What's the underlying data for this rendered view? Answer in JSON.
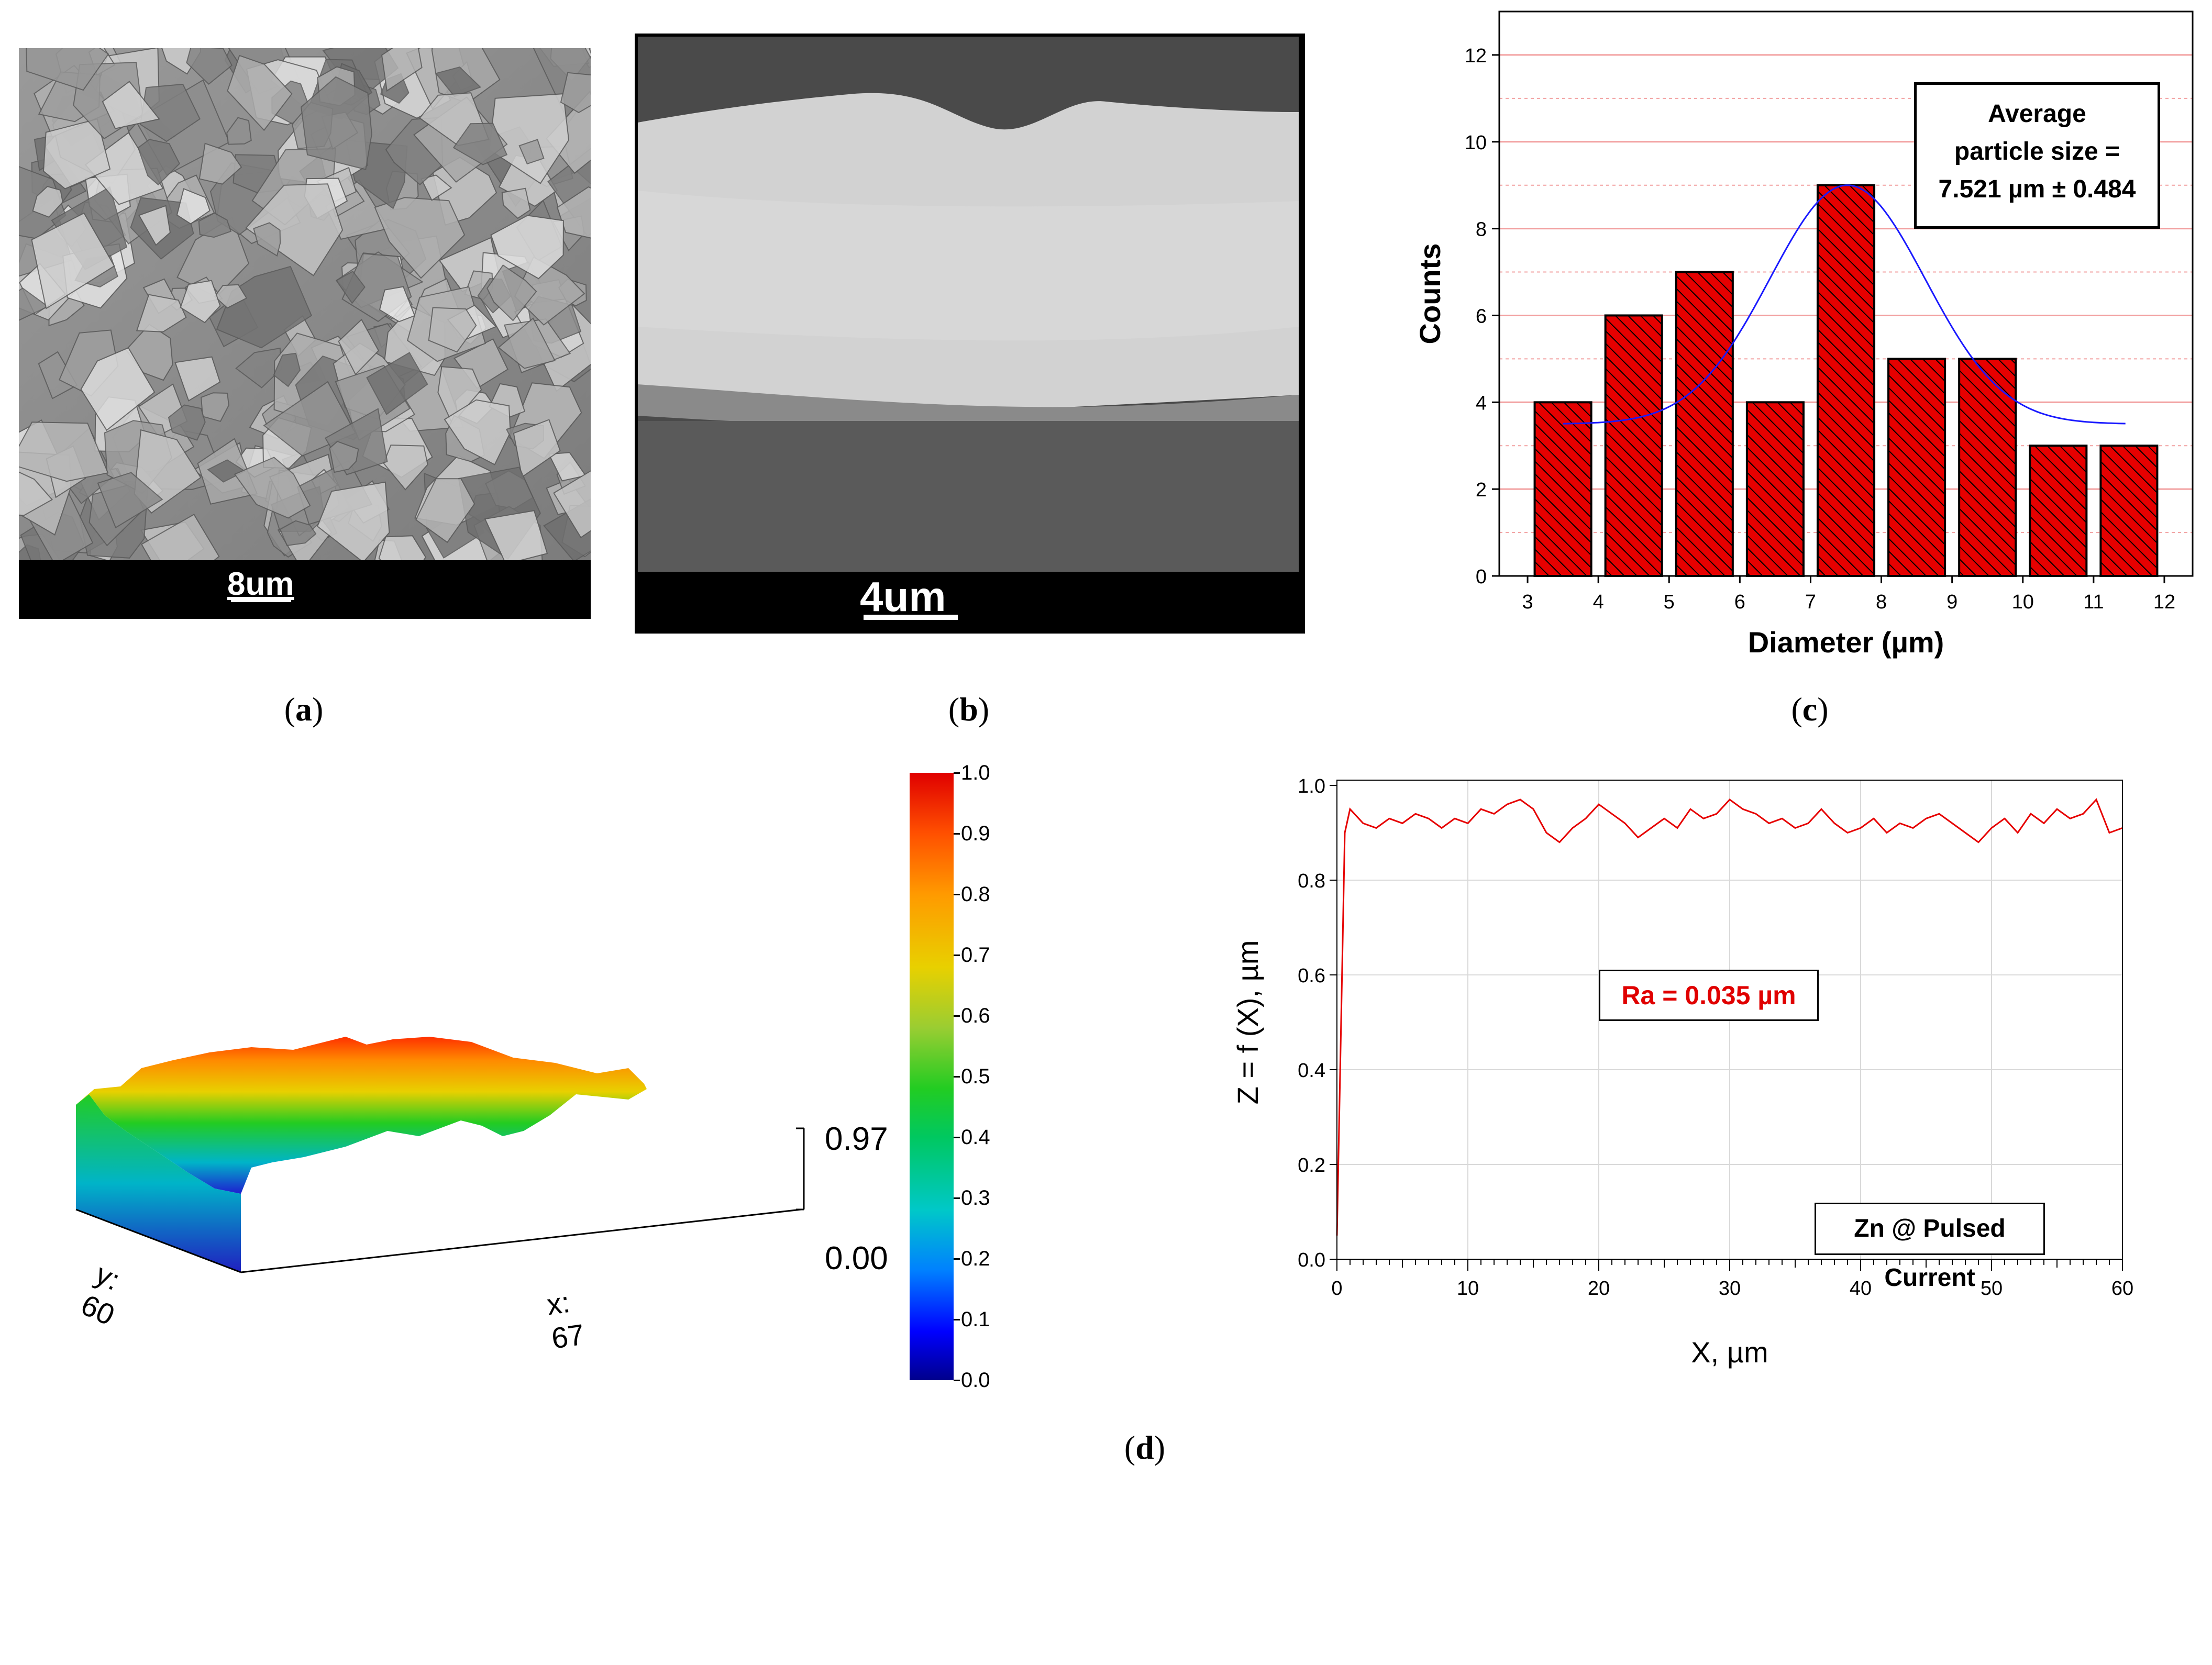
{
  "panel_a": {
    "scale_label": "8um",
    "caption": "a"
  },
  "panel_b": {
    "scale_label": "4um",
    "caption": "b"
  },
  "panel_c": {
    "caption": "c",
    "annotation_lines": [
      "Average",
      "particle size =",
      "7.521 µm ± 0.484"
    ]
  },
  "panel_d": {
    "caption": "d"
  },
  "surface3d": {
    "y_label": "y: 60",
    "x_label": "x: 67",
    "z_max": "0.97",
    "z_min": "0.00"
  },
  "colorbar": {
    "ticks": [
      "1.0",
      "0.9",
      "0.8",
      "0.7",
      "0.6",
      "0.5",
      "0.4",
      "0.3",
      "0.2",
      "0.1",
      "0.0"
    ]
  },
  "chart_data": [
    {
      "type": "bar",
      "title": "",
      "xlabel": "Diameter (µm)",
      "ylabel": "Counts",
      "xlim": [
        2.6,
        12.4
      ],
      "ylim": [
        0,
        13
      ],
      "x_ticks": [
        3,
        4,
        5,
        6,
        7,
        8,
        9,
        10,
        11,
        12
      ],
      "y_ticks": [
        0,
        2,
        4,
        6,
        8,
        10,
        12
      ],
      "bin_starts": [
        3.1,
        4.1,
        5.1,
        6.1,
        7.1,
        8.1,
        9.1,
        10.1,
        11.1
      ],
      "bin_width": 0.8,
      "values": [
        4,
        6,
        7,
        4,
        9,
        5,
        5,
        3,
        3
      ],
      "fit": {
        "type": "gaussian",
        "mean": 7.521,
        "peak": 9,
        "baseline": 3.5,
        "sigma": 1.1
      },
      "colors": {
        "bar": "#e60000",
        "fit": "#1a1aff",
        "grid": "#f2a0a0"
      }
    },
    {
      "type": "line",
      "xlabel": "X,  µm",
      "ylabel": "Z = f (X),  µm",
      "xlim": [
        0,
        60
      ],
      "ylim": [
        0,
        1.0
      ],
      "x_ticks": [
        0,
        10,
        20,
        30,
        40,
        50,
        60
      ],
      "y_ticks": [
        "0.0",
        "0.2",
        "0.4",
        "0.6",
        "0.8",
        "1.0"
      ],
      "x": [
        0,
        0.6,
        1,
        2,
        3,
        4,
        5,
        6,
        7,
        8,
        9,
        10,
        11,
        12,
        13,
        14,
        15,
        16,
        17,
        18,
        19,
        20,
        21,
        22,
        23,
        24,
        25,
        26,
        27,
        28,
        29,
        30,
        31,
        32,
        33,
        34,
        35,
        36,
        37,
        38,
        39,
        40,
        41,
        42,
        43,
        44,
        45,
        46,
        47,
        48,
        49,
        50,
        51,
        52,
        53,
        54,
        55,
        56,
        57,
        58,
        59,
        60
      ],
      "y": [
        0.05,
        0.9,
        0.95,
        0.92,
        0.91,
        0.93,
        0.92,
        0.94,
        0.93,
        0.91,
        0.93,
        0.92,
        0.95,
        0.94,
        0.96,
        0.97,
        0.95,
        0.9,
        0.88,
        0.91,
        0.93,
        0.96,
        0.94,
        0.92,
        0.89,
        0.91,
        0.93,
        0.91,
        0.95,
        0.93,
        0.94,
        0.97,
        0.95,
        0.94,
        0.92,
        0.93,
        0.91,
        0.92,
        0.95,
        0.92,
        0.9,
        0.91,
        0.93,
        0.9,
        0.92,
        0.91,
        0.93,
        0.94,
        0.92,
        0.9,
        0.88,
        0.91,
        0.93,
        0.9,
        0.94,
        0.92,
        0.95,
        0.93,
        0.94,
        0.97,
        0.9,
        0.91
      ],
      "annotation": "Ra = 0.035 µm",
      "legend": "Zn @ Pulsed Current",
      "colors": {
        "line": "#e60000",
        "grid": "#d9d9d9"
      }
    }
  ]
}
